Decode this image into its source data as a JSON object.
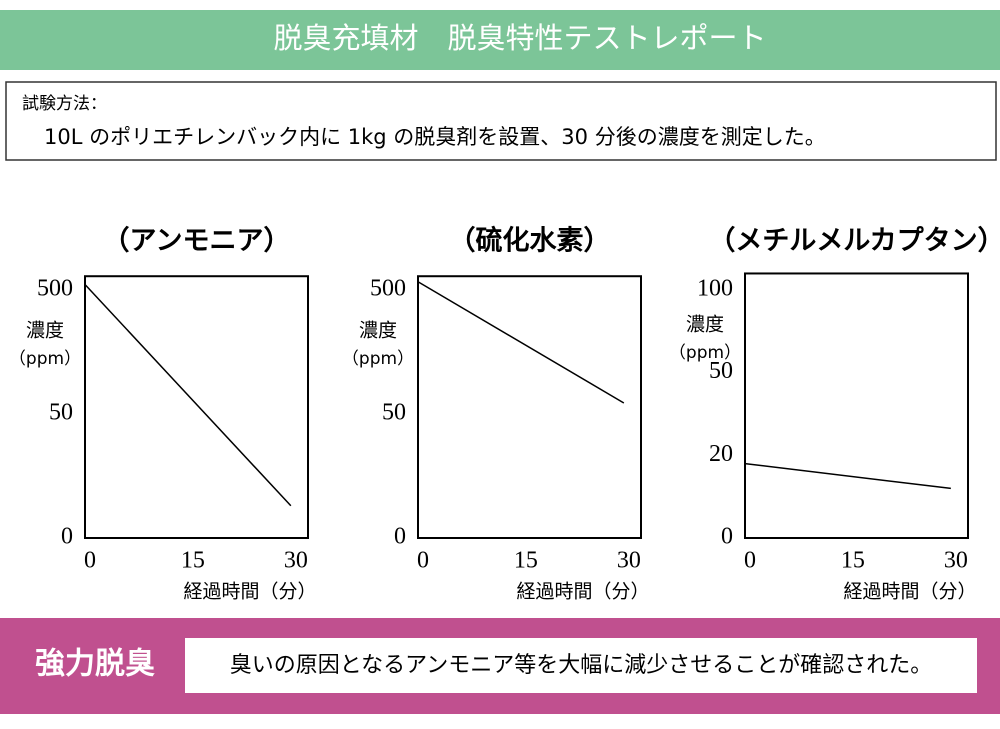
{
  "header": {
    "title": "脱臭充填材　脱臭特性テストレポート"
  },
  "method": {
    "label": "試験方法：",
    "text": "10L のポリエチレンバック内に 1kg の脱臭剤を設置、30 分後の濃度を測定した。"
  },
  "chart_data": [
    {
      "type": "line",
      "title": "（アンモニア）",
      "y_label": "濃度",
      "y_unit": "（ppm）",
      "x_label": "経過時間（分）",
      "x": [
        0,
        30
      ],
      "values": [
        520,
        13
      ],
      "color": "#000000",
      "xlim": [
        0,
        32.5
      ],
      "xticks": [
        0,
        15,
        30
      ],
      "ylim": [
        0,
        550
      ],
      "yticks": [
        0,
        50,
        500
      ]
    },
    {
      "type": "line",
      "title": "（硫化水素）",
      "y_label": "濃度",
      "y_unit": "（ppm）",
      "x_label": "経過時間（分）",
      "x": [
        0,
        30
      ],
      "values": [
        530,
        90
      ],
      "color": "#000000",
      "xlim": [
        0,
        32.5
      ],
      "xticks": [
        0,
        15,
        30
      ],
      "ylim": [
        0,
        550
      ],
      "yticks": [
        0,
        50,
        500
      ]
    },
    {
      "type": "line",
      "title": "（メチルメルカプタン）",
      "y_label": "濃度",
      "y_unit": "（ppm）",
      "x_label": "経過時間（分）",
      "x": [
        0,
        30
      ],
      "values": [
        18,
        12
      ],
      "color": "#000000",
      "xlim": [
        0,
        32.5
      ],
      "xticks": [
        0,
        15,
        30
      ],
      "ylim": [
        0,
        110
      ],
      "yticks": [
        0,
        20,
        50,
        100
      ]
    }
  ],
  "footer": {
    "label": "強力脱臭",
    "text": "臭いの原因となるアンモニア等を大幅に減少させることが確認された。"
  }
}
